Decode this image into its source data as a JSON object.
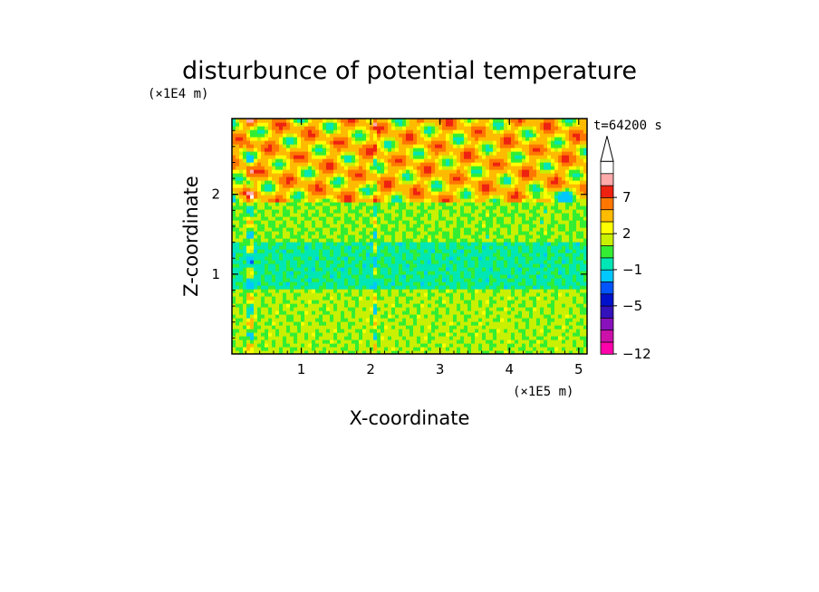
{
  "chart_data": {
    "type": "heatmap",
    "title": "disturbunce of potential temperature",
    "xlabel": "X-coordinate",
    "ylabel": "Z-coordinate",
    "x_unit": "(×1E5 m)",
    "y_unit": "(×1E4 m)",
    "annotation": "t=64200 s",
    "xlim": [
      0,
      5.12
    ],
    "ylim": [
      0,
      2.95
    ],
    "x_ticks": [
      1,
      2,
      3,
      4,
      5
    ],
    "y_ticks": [
      1,
      2
    ],
    "x_tick_labels": [
      "1",
      "2",
      "3",
      "4",
      "5"
    ],
    "y_tick_labels": [
      "1",
      "2"
    ],
    "colorbar": {
      "levels": [
        -12,
        -10,
        -8,
        -6,
        -5,
        -4,
        -3,
        -1,
        0,
        1,
        2,
        3,
        5,
        7,
        8,
        9
      ],
      "labels": [
        {
          "value": -12,
          "text": "−12"
        },
        {
          "value": -5,
          "text": "−5"
        },
        {
          "value": -1,
          "text": "−1"
        },
        {
          "value": 2,
          "text": "2"
        },
        {
          "value": 7,
          "text": "7"
        }
      ],
      "colors": [
        "#ff00aa",
        "#cc11aa",
        "#8811bb",
        "#3311bb",
        "#0011cc",
        "#0055ff",
        "#00c8ff",
        "#00e6b4",
        "#33ee33",
        "#c8f000",
        "#ffff00",
        "#ffbb00",
        "#ff7700",
        "#ee2211",
        "#ffaaaa",
        "#ffffff"
      ],
      "extend": "max"
    },
    "field_bands": [
      {
        "z_from": 0.0,
        "z_to": 0.8,
        "value": 1.2
      },
      {
        "z_from": 0.8,
        "z_to": 1.4,
        "value": -0.2
      },
      {
        "z_from": 1.4,
        "z_to": 1.9,
        "value": 1.0
      },
      {
        "z_from": 1.9,
        "z_to": 2.95,
        "value": 3.0
      }
    ]
  }
}
